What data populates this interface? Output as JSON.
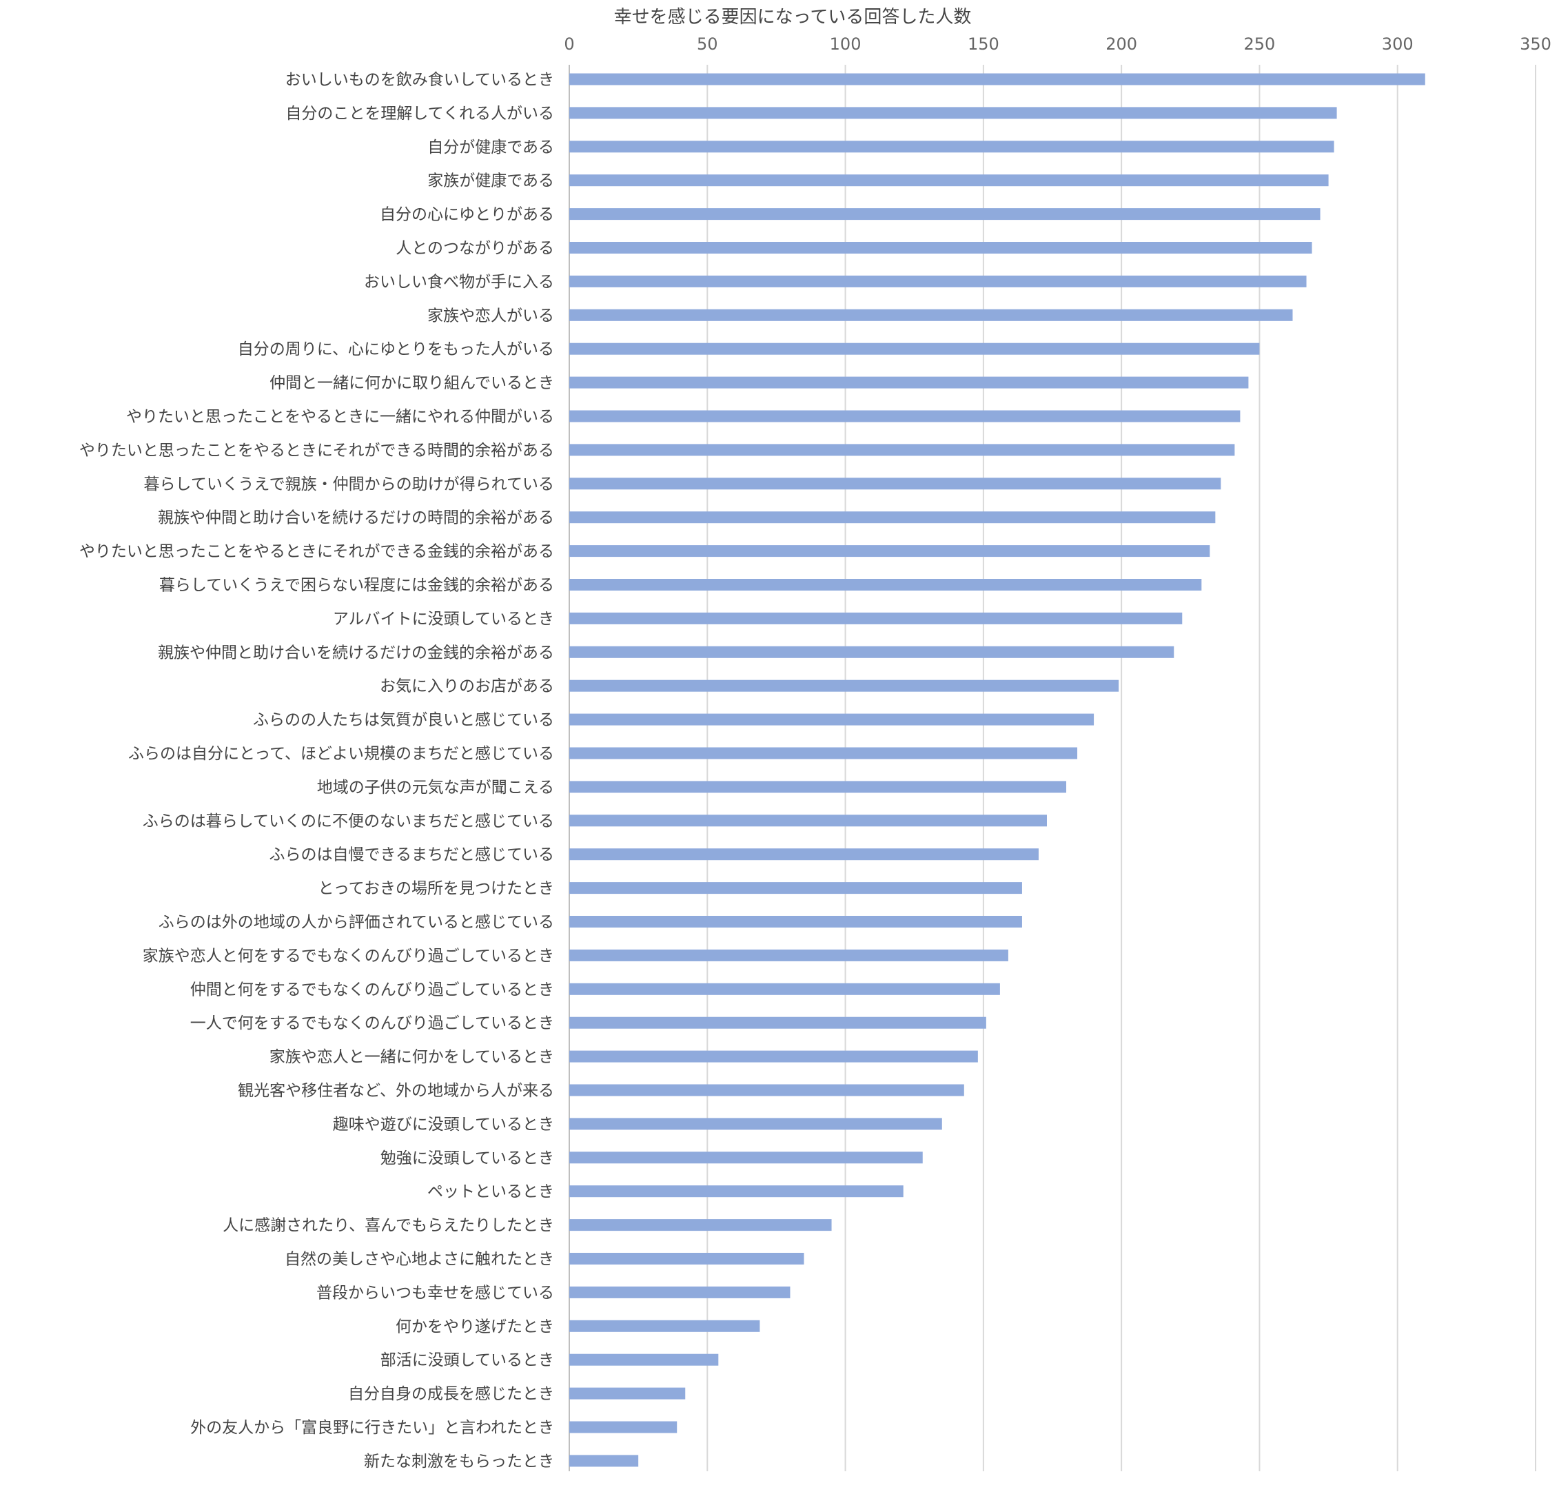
{
  "chart_data": {
    "type": "bar",
    "orientation": "horizontal",
    "title": "幸せを感じる要因になっている回答した人数",
    "xlabel": "",
    "ylabel": "",
    "xlim": [
      0,
      350
    ],
    "x_ticks": [
      0,
      50,
      100,
      150,
      200,
      250,
      300,
      350
    ],
    "x_axis_position": "top",
    "grid": true,
    "legend": "none",
    "bar_color": "#8faadc",
    "categories": [
      "おいしいものを飲み食いしているとき",
      "自分のことを理解してくれる人がいる",
      "自分が健康である",
      "家族が健康である",
      "自分の心にゆとりがある",
      "人とのつながりがある",
      "おいしい食べ物が手に入る",
      "家族や恋人がいる",
      "自分の周りに、心にゆとりをもった人がいる",
      "仲間と一緒に何かに取り組んでいるとき",
      "やりたいと思ったことをやるときに一緒にやれる仲間がいる",
      "やりたいと思ったことをやるときにそれができる時間的余裕がある",
      "暮らしていくうえで親族・仲間からの助けが得られている",
      "親族や仲間と助け合いを続けるだけの時間的余裕がある",
      "やりたいと思ったことをやるときにそれができる金銭的余裕がある",
      "暮らしていくうえで困らない程度には金銭的余裕がある",
      "アルバイトに没頭しているとき",
      "親族や仲間と助け合いを続けるだけの金銭的余裕がある",
      "お気に入りのお店がある",
      "ふらのの人たちは気質が良いと感じている",
      "ふらのは自分にとって、ほどよい規模のまちだと感じている",
      "地域の子供の元気な声が聞こえる",
      "ふらのは暮らしていくのに不便のないまちだと感じている",
      "ふらのは自慢できるまちだと感じている",
      "とっておきの場所を見つけたとき",
      "ふらのは外の地域の人から評価されていると感じている",
      "家族や恋人と何をするでもなくのんびり過ごしているとき",
      "仲間と何をするでもなくのんびり過ごしているとき",
      "一人で何をするでもなくのんびり過ごしているとき",
      "家族や恋人と一緒に何かをしているとき",
      "観光客や移住者など、外の地域から人が来る",
      "趣味や遊びに没頭しているとき",
      "勉強に没頭しているとき",
      "ペットといるとき",
      "人に感謝されたり、喜んでもらえたりしたとき",
      "自然の美しさや心地よさに触れたとき",
      "普段からいつも幸せを感じている",
      "何かをやり遂げたとき",
      "部活に没頭しているとき",
      "自分自身の成長を感じたとき",
      "外の友人から「富良野に行きたい」と言われたとき",
      "新たな刺激をもらったとき"
    ],
    "values": [
      310,
      278,
      277,
      275,
      272,
      269,
      267,
      262,
      250,
      246,
      243,
      241,
      236,
      234,
      232,
      229,
      222,
      219,
      199,
      190,
      184,
      180,
      173,
      170,
      164,
      164,
      159,
      156,
      151,
      148,
      143,
      135,
      128,
      121,
      95,
      85,
      80,
      69,
      54,
      42,
      39,
      25
    ]
  }
}
